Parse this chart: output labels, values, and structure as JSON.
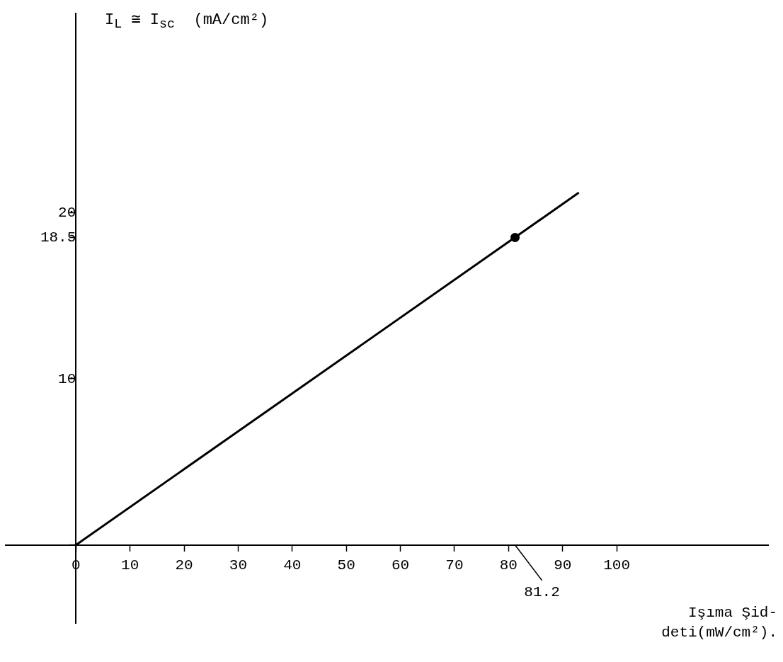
{
  "chart_data": {
    "type": "line",
    "xlabel": "Işıma Şid-deti(mW/cm²).",
    "ylabel": "I$_{L}$ ≅ I$_{sc}$  (mA/cm²)",
    "xlim": [
      -13,
      128
    ],
    "ylim": [
      -4.7,
      32
    ],
    "xticks": [
      {
        "value": 0,
        "label": "0"
      },
      10,
      20,
      30,
      40,
      50,
      60,
      70,
      80,
      90,
      100
    ],
    "yticks": [
      {
        "value": 0,
        "label": null
      },
      10,
      18.5,
      20
    ],
    "series": [
      {
        "color": "#000000",
        "x": [
          0,
          93
        ],
        "values": [
          0,
          21.2
        ],
        "marker": "none"
      },
      {
        "type": "scatter",
        "color": "#000000",
        "x": [
          81.2
        ],
        "values": [
          18.5
        ],
        "marker": "circle"
      }
    ],
    "annotations": [
      "81.2"
    ],
    "grid": false,
    "legend": false
  }
}
